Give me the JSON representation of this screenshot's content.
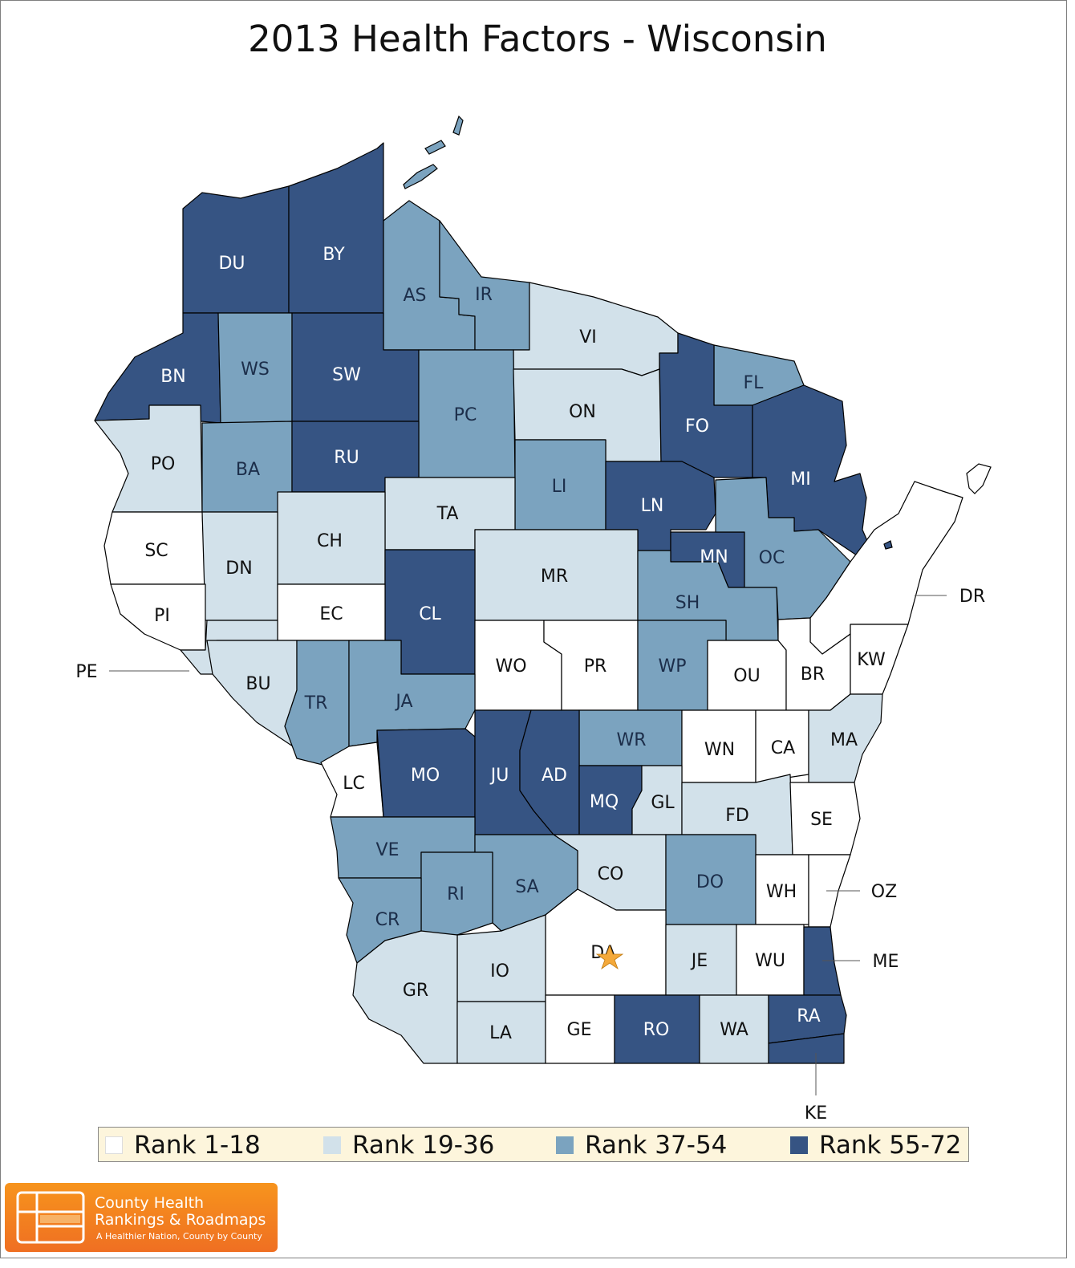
{
  "title": "2013 Health Factors - Wisconsin",
  "colors": {
    "rank_1_18": "#ffffff",
    "rank_19_36": "#d2e1ea",
    "rank_37_54": "#7ba3bf",
    "rank_55_72": "#365483",
    "border": "#000000",
    "star": "#f4a93a"
  },
  "legend": [
    {
      "label": "Rank 1-18",
      "class": "rank_1_18"
    },
    {
      "label": "Rank 19-36",
      "class": "rank_19_36"
    },
    {
      "label": "Rank 37-54",
      "class": "rank_37_54"
    },
    {
      "label": "Rank 55-72",
      "class": "rank_55_72"
    }
  ],
  "counties": [
    {
      "code": "DU",
      "class": "rank_55_72"
    },
    {
      "code": "BY",
      "class": "rank_55_72"
    },
    {
      "code": "AS",
      "class": "rank_37_54"
    },
    {
      "code": "IR",
      "class": "rank_37_54"
    },
    {
      "code": "VI",
      "class": "rank_19_36"
    },
    {
      "code": "BN",
      "class": "rank_55_72"
    },
    {
      "code": "WS",
      "class": "rank_37_54"
    },
    {
      "code": "SW",
      "class": "rank_55_72"
    },
    {
      "code": "PC",
      "class": "rank_37_54"
    },
    {
      "code": "ON",
      "class": "rank_19_36"
    },
    {
      "code": "FL",
      "class": "rank_37_54"
    },
    {
      "code": "FO",
      "class": "rank_55_72"
    },
    {
      "code": "MI",
      "class": "rank_55_72"
    },
    {
      "code": "PO",
      "class": "rank_19_36"
    },
    {
      "code": "BA",
      "class": "rank_37_54"
    },
    {
      "code": "RU",
      "class": "rank_55_72"
    },
    {
      "code": "LI",
      "class": "rank_37_54"
    },
    {
      "code": "LN",
      "class": "rank_55_72"
    },
    {
      "code": "TA",
      "class": "rank_19_36"
    },
    {
      "code": "SC",
      "class": "rank_1_18"
    },
    {
      "code": "CH",
      "class": "rank_19_36"
    },
    {
      "code": "DN",
      "class": "rank_19_36"
    },
    {
      "code": "MR",
      "class": "rank_19_36"
    },
    {
      "code": "MN",
      "class": "rank_55_72"
    },
    {
      "code": "OC",
      "class": "rank_37_54"
    },
    {
      "code": "CL",
      "class": "rank_55_72"
    },
    {
      "code": "SH",
      "class": "rank_37_54"
    },
    {
      "code": "PI",
      "class": "rank_1_18"
    },
    {
      "code": "EC",
      "class": "rank_1_18"
    },
    {
      "code": "DR",
      "class": "rank_1_18"
    },
    {
      "code": "PE",
      "class": "rank_19_36"
    },
    {
      "code": "WO",
      "class": "rank_1_18"
    },
    {
      "code": "PR",
      "class": "rank_1_18"
    },
    {
      "code": "WP",
      "class": "rank_37_54"
    },
    {
      "code": "OU",
      "class": "rank_1_18"
    },
    {
      "code": "BR",
      "class": "rank_1_18"
    },
    {
      "code": "KW",
      "class": "rank_1_18"
    },
    {
      "code": "BU",
      "class": "rank_19_36"
    },
    {
      "code": "TR",
      "class": "rank_37_54"
    },
    {
      "code": "JA",
      "class": "rank_37_54"
    },
    {
      "code": "WR",
      "class": "rank_37_54"
    },
    {
      "code": "WN",
      "class": "rank_1_18"
    },
    {
      "code": "CA",
      "class": "rank_1_18"
    },
    {
      "code": "MA",
      "class": "rank_19_36"
    },
    {
      "code": "LC",
      "class": "rank_1_18"
    },
    {
      "code": "MO",
      "class": "rank_55_72"
    },
    {
      "code": "JU",
      "class": "rank_55_72"
    },
    {
      "code": "AD",
      "class": "rank_55_72"
    },
    {
      "code": "MQ",
      "class": "rank_55_72"
    },
    {
      "code": "GL",
      "class": "rank_19_36"
    },
    {
      "code": "FD",
      "class": "rank_19_36"
    },
    {
      "code": "SE",
      "class": "rank_1_18"
    },
    {
      "code": "VE",
      "class": "rank_37_54"
    },
    {
      "code": "CO",
      "class": "rank_19_36"
    },
    {
      "code": "SA",
      "class": "rank_37_54"
    },
    {
      "code": "RI",
      "class": "rank_37_54"
    },
    {
      "code": "DO",
      "class": "rank_37_54"
    },
    {
      "code": "WH",
      "class": "rank_1_18"
    },
    {
      "code": "OZ",
      "class": "rank_1_18"
    },
    {
      "code": "CR",
      "class": "rank_37_54"
    },
    {
      "code": "DA",
      "class": "rank_1_18"
    },
    {
      "code": "JE",
      "class": "rank_19_36"
    },
    {
      "code": "WU",
      "class": "rank_1_18"
    },
    {
      "code": "ME",
      "class": "rank_55_72"
    },
    {
      "code": "IO",
      "class": "rank_19_36"
    },
    {
      "code": "GR",
      "class": "rank_19_36"
    },
    {
      "code": "LA",
      "class": "rank_19_36"
    },
    {
      "code": "GE",
      "class": "rank_1_18"
    },
    {
      "code": "RO",
      "class": "rank_55_72"
    },
    {
      "code": "WA",
      "class": "rank_19_36"
    },
    {
      "code": "RA",
      "class": "rank_55_72"
    },
    {
      "code": "KE",
      "class": "rank_55_72"
    }
  ],
  "logo": {
    "line1": "County Health",
    "line2": "Rankings & Roadmaps",
    "tagline": "A Healthier Nation, County by County"
  }
}
